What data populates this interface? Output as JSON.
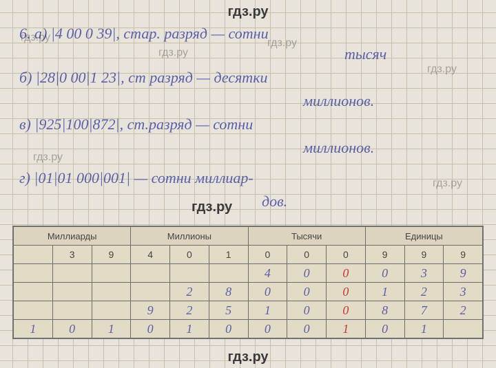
{
  "header": {
    "title": "гдз.ру"
  },
  "handwriting": {
    "line1": "6. а) |4 00 0 39|, стар. разряд — сотни",
    "line1b": "тысяч",
    "line2": "б) |28|0 00|1 23|, ст разряд — десятки",
    "line2b": "миллионов.",
    "line3": "в) |925|100|872|, ст.разряд — сотни",
    "line3b": "миллионов.",
    "line4": "г) |01|01 000|001| — сотни миллиар-",
    "line4b": "дов."
  },
  "watermarks": [
    "гдз.ру",
    "гдз.ру",
    "гдз.ру",
    "гдз.ру",
    "гдз.ру",
    "гдз.ру",
    "гдз.ру",
    "гдз.ру",
    "гдз.ру"
  ],
  "footer": {
    "label": "гдз.ру"
  },
  "table": {
    "headers": [
      "Миллиарды",
      "Миллионы",
      "Тысячи",
      "Единицы"
    ],
    "printed_row": [
      "",
      "3",
      "9",
      "4",
      "0",
      "1",
      "0",
      "0",
      "0",
      "9",
      "9",
      "9"
    ],
    "rows": [
      [
        "",
        "",
        "",
        "",
        "",
        "",
        "4",
        "0",
        "0",
        "0",
        "3",
        "9"
      ],
      [
        "",
        "",
        "",
        "",
        "2",
        "8",
        "0",
        "0",
        "0",
        "1",
        "2",
        "3"
      ],
      [
        "",
        "",
        "",
        "9",
        "2",
        "5",
        "1",
        "0",
        "0",
        "8",
        "7",
        "2"
      ],
      [
        "1",
        "0",
        "1",
        "0",
        "1",
        "0",
        "0",
        "0",
        "1",
        "0",
        "1",
        ""
      ]
    ],
    "red_col": 8
  },
  "styling": {
    "bg": "#e8e4dc",
    "grid": "#c8bea8",
    "ink": "#5a5fa8",
    "red": "#c23a3a",
    "table_bg": "#e2dbc6",
    "header_bg": "#dcd4be",
    "border": "#6b6b6b"
  }
}
